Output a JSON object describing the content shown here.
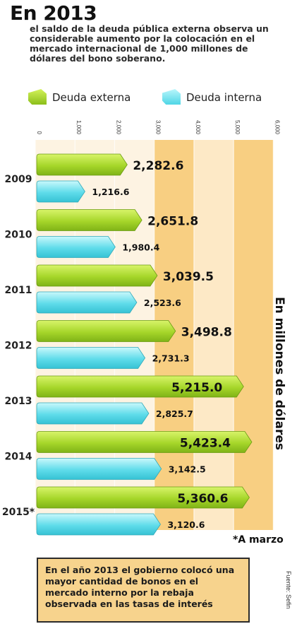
{
  "header": {
    "title": "En 2013",
    "subtitle": "el saldo de la deuda pública externa observa un considerable aumento por la colocación en el mercado internacional de 1,000 millones de dólares del bono soberano."
  },
  "legend": {
    "external": "Deuda externa",
    "internal": "Deuda interna"
  },
  "side_label": "En millones de dólares",
  "note": "*A marzo",
  "footnote": "En el año 2013 el gobierno colocó una mayor cantidad de bonos en el mercado interno por la rebaja observada en las tasas de interés",
  "source": "Fuente: Sefin",
  "colors": {
    "external": "#a6d62a",
    "internal": "#5fdcea",
    "band_light": "#fde9c6",
    "band_dark": "#f8cf82"
  },
  "chart_data": {
    "type": "bar",
    "orientation": "horizontal",
    "categories": [
      "2009",
      "2010",
      "2011",
      "2012",
      "2013",
      "2014",
      "2015*"
    ],
    "series": [
      {
        "name": "Deuda externa",
        "values": [
          2282.6,
          2651.8,
          3039.5,
          3498.8,
          5215.0,
          5423.4,
          5360.6
        ]
      },
      {
        "name": "Deuda interna",
        "values": [
          1216.6,
          1980.4,
          2523.6,
          2731.3,
          2825.7,
          3142.5,
          3120.6
        ]
      }
    ],
    "value_labels": {
      "external": [
        "2,282.6",
        "2,651.8",
        "3,039.5",
        "3,498.8",
        "5,215.0",
        "5,423.4",
        "5,360.6"
      ],
      "internal": [
        "1,216.6",
        "1,980.4",
        "2,523.6",
        "2,731.3",
        "2,825.7",
        "3,142.5",
        "3,120.6"
      ]
    },
    "xticks": [
      "0",
      "1,000",
      "2,000",
      "3,000",
      "4,000",
      "5,000",
      "6,000"
    ],
    "xlim": [
      0,
      6000
    ],
    "ylabel": "En millones de dólares",
    "legend_position": "top"
  }
}
